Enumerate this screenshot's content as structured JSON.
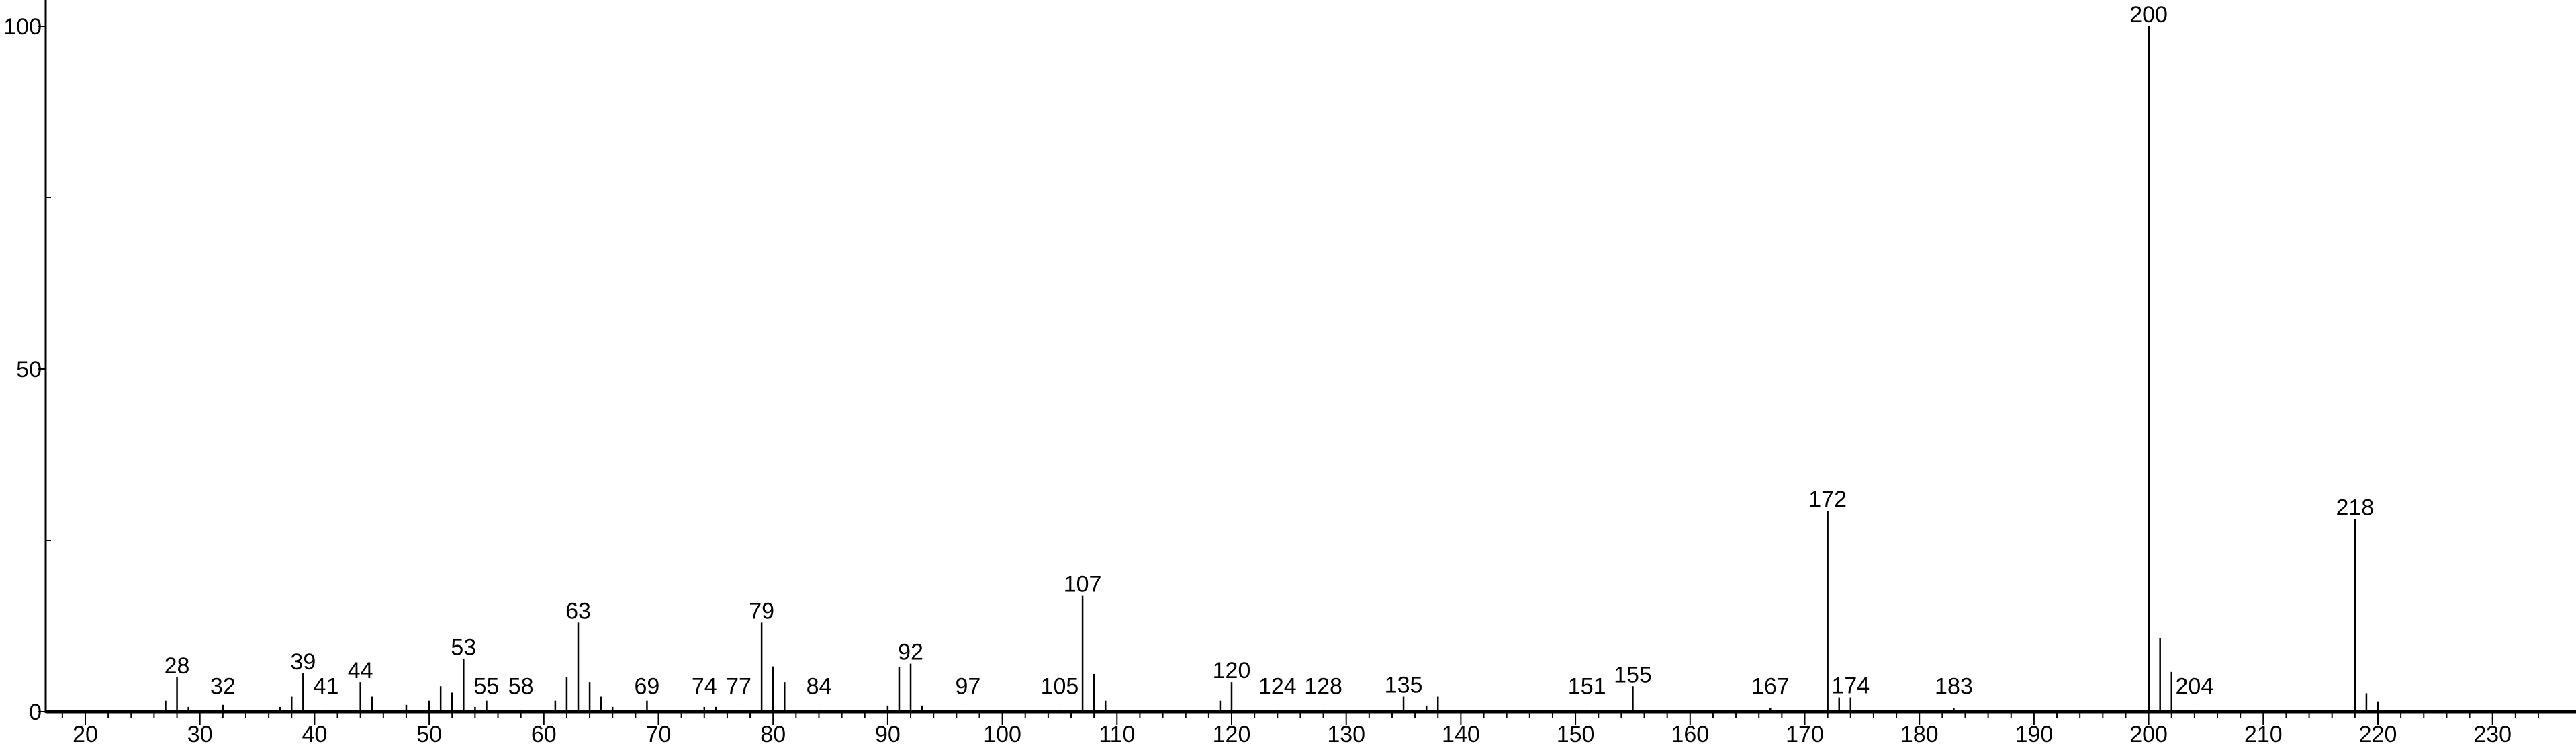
{
  "chart_data": {
    "type": "bar",
    "title": "",
    "xlabel": "",
    "ylabel": "",
    "xlim": [
      16.6,
      235
    ],
    "ylim": [
      0,
      100
    ],
    "grid": false,
    "x_ticks": [
      "20",
      "30",
      "40",
      "50",
      "60",
      "70",
      "80",
      "90",
      "100",
      "110",
      "120",
      "130",
      "140",
      "150",
      "160",
      "170",
      "180",
      "190",
      "200",
      "210",
      "220",
      "230"
    ],
    "y_ticks": [
      "0",
      "50",
      "100"
    ],
    "peaks": [
      {
        "mz": 27,
        "intensity": 1.6
      },
      {
        "mz": 28,
        "intensity": 5.0,
        "label": "28"
      },
      {
        "mz": 29,
        "intensity": 0.7
      },
      {
        "mz": 32,
        "intensity": 1.0,
        "label": "32"
      },
      {
        "mz": 37,
        "intensity": 0.7
      },
      {
        "mz": 38,
        "intensity": 2.2
      },
      {
        "mz": 39,
        "intensity": 5.6,
        "label": "39"
      },
      {
        "mz": 41,
        "intensity": 0.3,
        "label": "41"
      },
      {
        "mz": 44,
        "intensity": 4.3,
        "label": "44"
      },
      {
        "mz": 45,
        "intensity": 2.2
      },
      {
        "mz": 48,
        "intensity": 1.0
      },
      {
        "mz": 50,
        "intensity": 1.6
      },
      {
        "mz": 51,
        "intensity": 3.7
      },
      {
        "mz": 52,
        "intensity": 2.8
      },
      {
        "mz": 53,
        "intensity": 7.7,
        "label": "53"
      },
      {
        "mz": 54,
        "intensity": 0.7
      },
      {
        "mz": 55,
        "intensity": 1.6,
        "label": "55"
      },
      {
        "mz": 58,
        "intensity": 0.3,
        "label": "58"
      },
      {
        "mz": 61,
        "intensity": 1.6
      },
      {
        "mz": 62,
        "intensity": 5.0
      },
      {
        "mz": 63,
        "intensity": 13.0,
        "label": "63"
      },
      {
        "mz": 64,
        "intensity": 4.3
      },
      {
        "mz": 65,
        "intensity": 2.2
      },
      {
        "mz": 66,
        "intensity": 0.7
      },
      {
        "mz": 69,
        "intensity": 1.6,
        "label": "69"
      },
      {
        "mz": 74,
        "intensity": 0.7,
        "label": "74"
      },
      {
        "mz": 75,
        "intensity": 0.7
      },
      {
        "mz": 77,
        "intensity": 0.3,
        "label": "77"
      },
      {
        "mz": 79,
        "intensity": 13.0,
        "label": "79"
      },
      {
        "mz": 80,
        "intensity": 6.6
      },
      {
        "mz": 81,
        "intensity": 4.3
      },
      {
        "mz": 84,
        "intensity": 0.3,
        "label": "84"
      },
      {
        "mz": 90,
        "intensity": 0.9
      },
      {
        "mz": 91,
        "intensity": 6.5
      },
      {
        "mz": 92,
        "intensity": 7.0,
        "label": "92"
      },
      {
        "mz": 93,
        "intensity": 0.9
      },
      {
        "mz": 97,
        "intensity": 0.3,
        "label": "97"
      },
      {
        "mz": 105,
        "intensity": 0.3,
        "label": "105"
      },
      {
        "mz": 107,
        "intensity": 16.9,
        "label": "107"
      },
      {
        "mz": 108,
        "intensity": 5.5
      },
      {
        "mz": 109,
        "intensity": 1.6
      },
      {
        "mz": 119,
        "intensity": 1.6
      },
      {
        "mz": 120,
        "intensity": 4.3,
        "label": "120"
      },
      {
        "mz": 124,
        "intensity": 0.3,
        "label": "124"
      },
      {
        "mz": 128,
        "intensity": 0.3,
        "label": "128"
      },
      {
        "mz": 135,
        "intensity": 2.2,
        "label": "135"
      },
      {
        "mz": 137,
        "intensity": 0.9
      },
      {
        "mz": 138,
        "intensity": 2.2
      },
      {
        "mz": 151,
        "intensity": 0.3,
        "label": "151"
      },
      {
        "mz": 155,
        "intensity": 3.7,
        "label": "155"
      },
      {
        "mz": 167,
        "intensity": 0.5,
        "label": "167"
      },
      {
        "mz": 172,
        "intensity": 29.3,
        "label": "172"
      },
      {
        "mz": 173,
        "intensity": 2.1
      },
      {
        "mz": 174,
        "intensity": 2.1,
        "label": "174"
      },
      {
        "mz": 183,
        "intensity": 0.5,
        "label": "183"
      },
      {
        "mz": 200,
        "intensity": 100,
        "label": "200"
      },
      {
        "mz": 201,
        "intensity": 10.7
      },
      {
        "mz": 202,
        "intensity": 5.8
      },
      {
        "mz": 204,
        "intensity": 0.3,
        "label": "204"
      },
      {
        "mz": 218,
        "intensity": 28.1,
        "label": "218"
      },
      {
        "mz": 219,
        "intensity": 2.7
      },
      {
        "mz": 220,
        "intensity": 1.5
      }
    ]
  }
}
